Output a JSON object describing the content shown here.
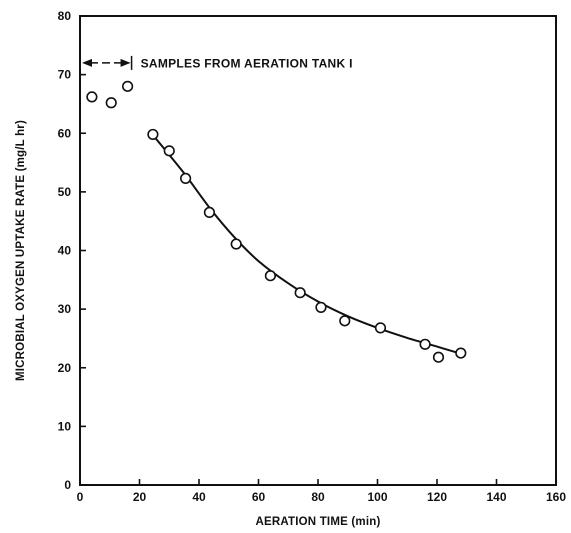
{
  "chart_data": {
    "type": "scatter",
    "title": "",
    "xlabel": "AERATION TIME (min)",
    "ylabel": "MICROBIAL OXYGEN UPTAKE RATE (mg/L hr)",
    "xlim": [
      0,
      160
    ],
    "ylim": [
      0,
      80
    ],
    "xticks": [
      0,
      20,
      40,
      60,
      80,
      100,
      120,
      140,
      160
    ],
    "yticks": [
      0,
      10,
      20,
      30,
      40,
      50,
      60,
      70,
      80
    ],
    "grid": false,
    "series": [
      {
        "kind": "points",
        "x": [
          4,
          10.5,
          16,
          24.5,
          30,
          35.5,
          43.5,
          52.5,
          64,
          74,
          81,
          89,
          101,
          116,
          120.5,
          128
        ],
        "y": [
          66.2,
          65.2,
          68,
          59.8,
          57,
          52.3,
          46.5,
          41.1,
          35.7,
          32.8,
          30.3,
          28,
          26.8,
          24,
          21.8,
          22.5
        ]
      },
      {
        "kind": "fitted-curve",
        "x": [
          24,
          30,
          36,
          44,
          52,
          60,
          70,
          80,
          90,
          100,
          110,
          120,
          128
        ],
        "y": [
          60,
          56.3,
          52.5,
          47,
          42.2,
          38.2,
          34.4,
          31.3,
          28.8,
          26.8,
          25.1,
          23.6,
          22.4
        ]
      }
    ],
    "annotations": [
      {
        "text": "SAMPLES FROM AERATION TANK I",
        "x": 30,
        "y": 72,
        "range_x": [
          0,
          17
        ]
      }
    ]
  }
}
